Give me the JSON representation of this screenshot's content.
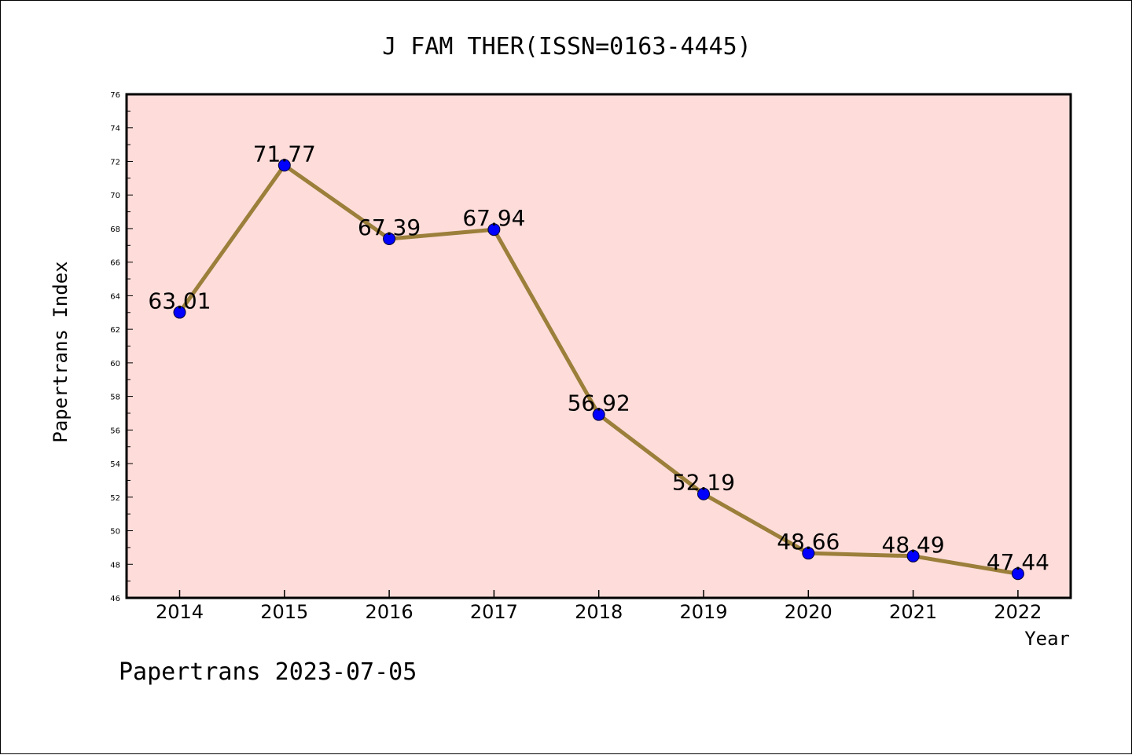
{
  "chart_data": {
    "type": "line",
    "title": "J FAM THER(ISSN=0163-4445)",
    "xlabel": "Year",
    "ylabel": "Papertrans Index",
    "categories": [
      "2014",
      "2015",
      "2016",
      "2017",
      "2018",
      "2019",
      "2020",
      "2021",
      "2022"
    ],
    "values": [
      63.01,
      71.77,
      67.39,
      67.94,
      56.92,
      52.19,
      48.66,
      48.49,
      47.44
    ],
    "data_labels": [
      "63.01",
      "71.77",
      "67.39",
      "67.94",
      "56.92",
      "52.19",
      "48.66",
      "48.49",
      "47.44"
    ],
    "ylim": [
      46,
      76
    ],
    "yticks": [
      46,
      48,
      50,
      52,
      54,
      56,
      58,
      60,
      62,
      64,
      66,
      68,
      70,
      72,
      74,
      76
    ],
    "grid": false,
    "plot_background": "#fddcd9",
    "line_color": "#9b7f3a",
    "marker_color": "#0000ff",
    "footer": "Papertrans 2023-07-05"
  }
}
